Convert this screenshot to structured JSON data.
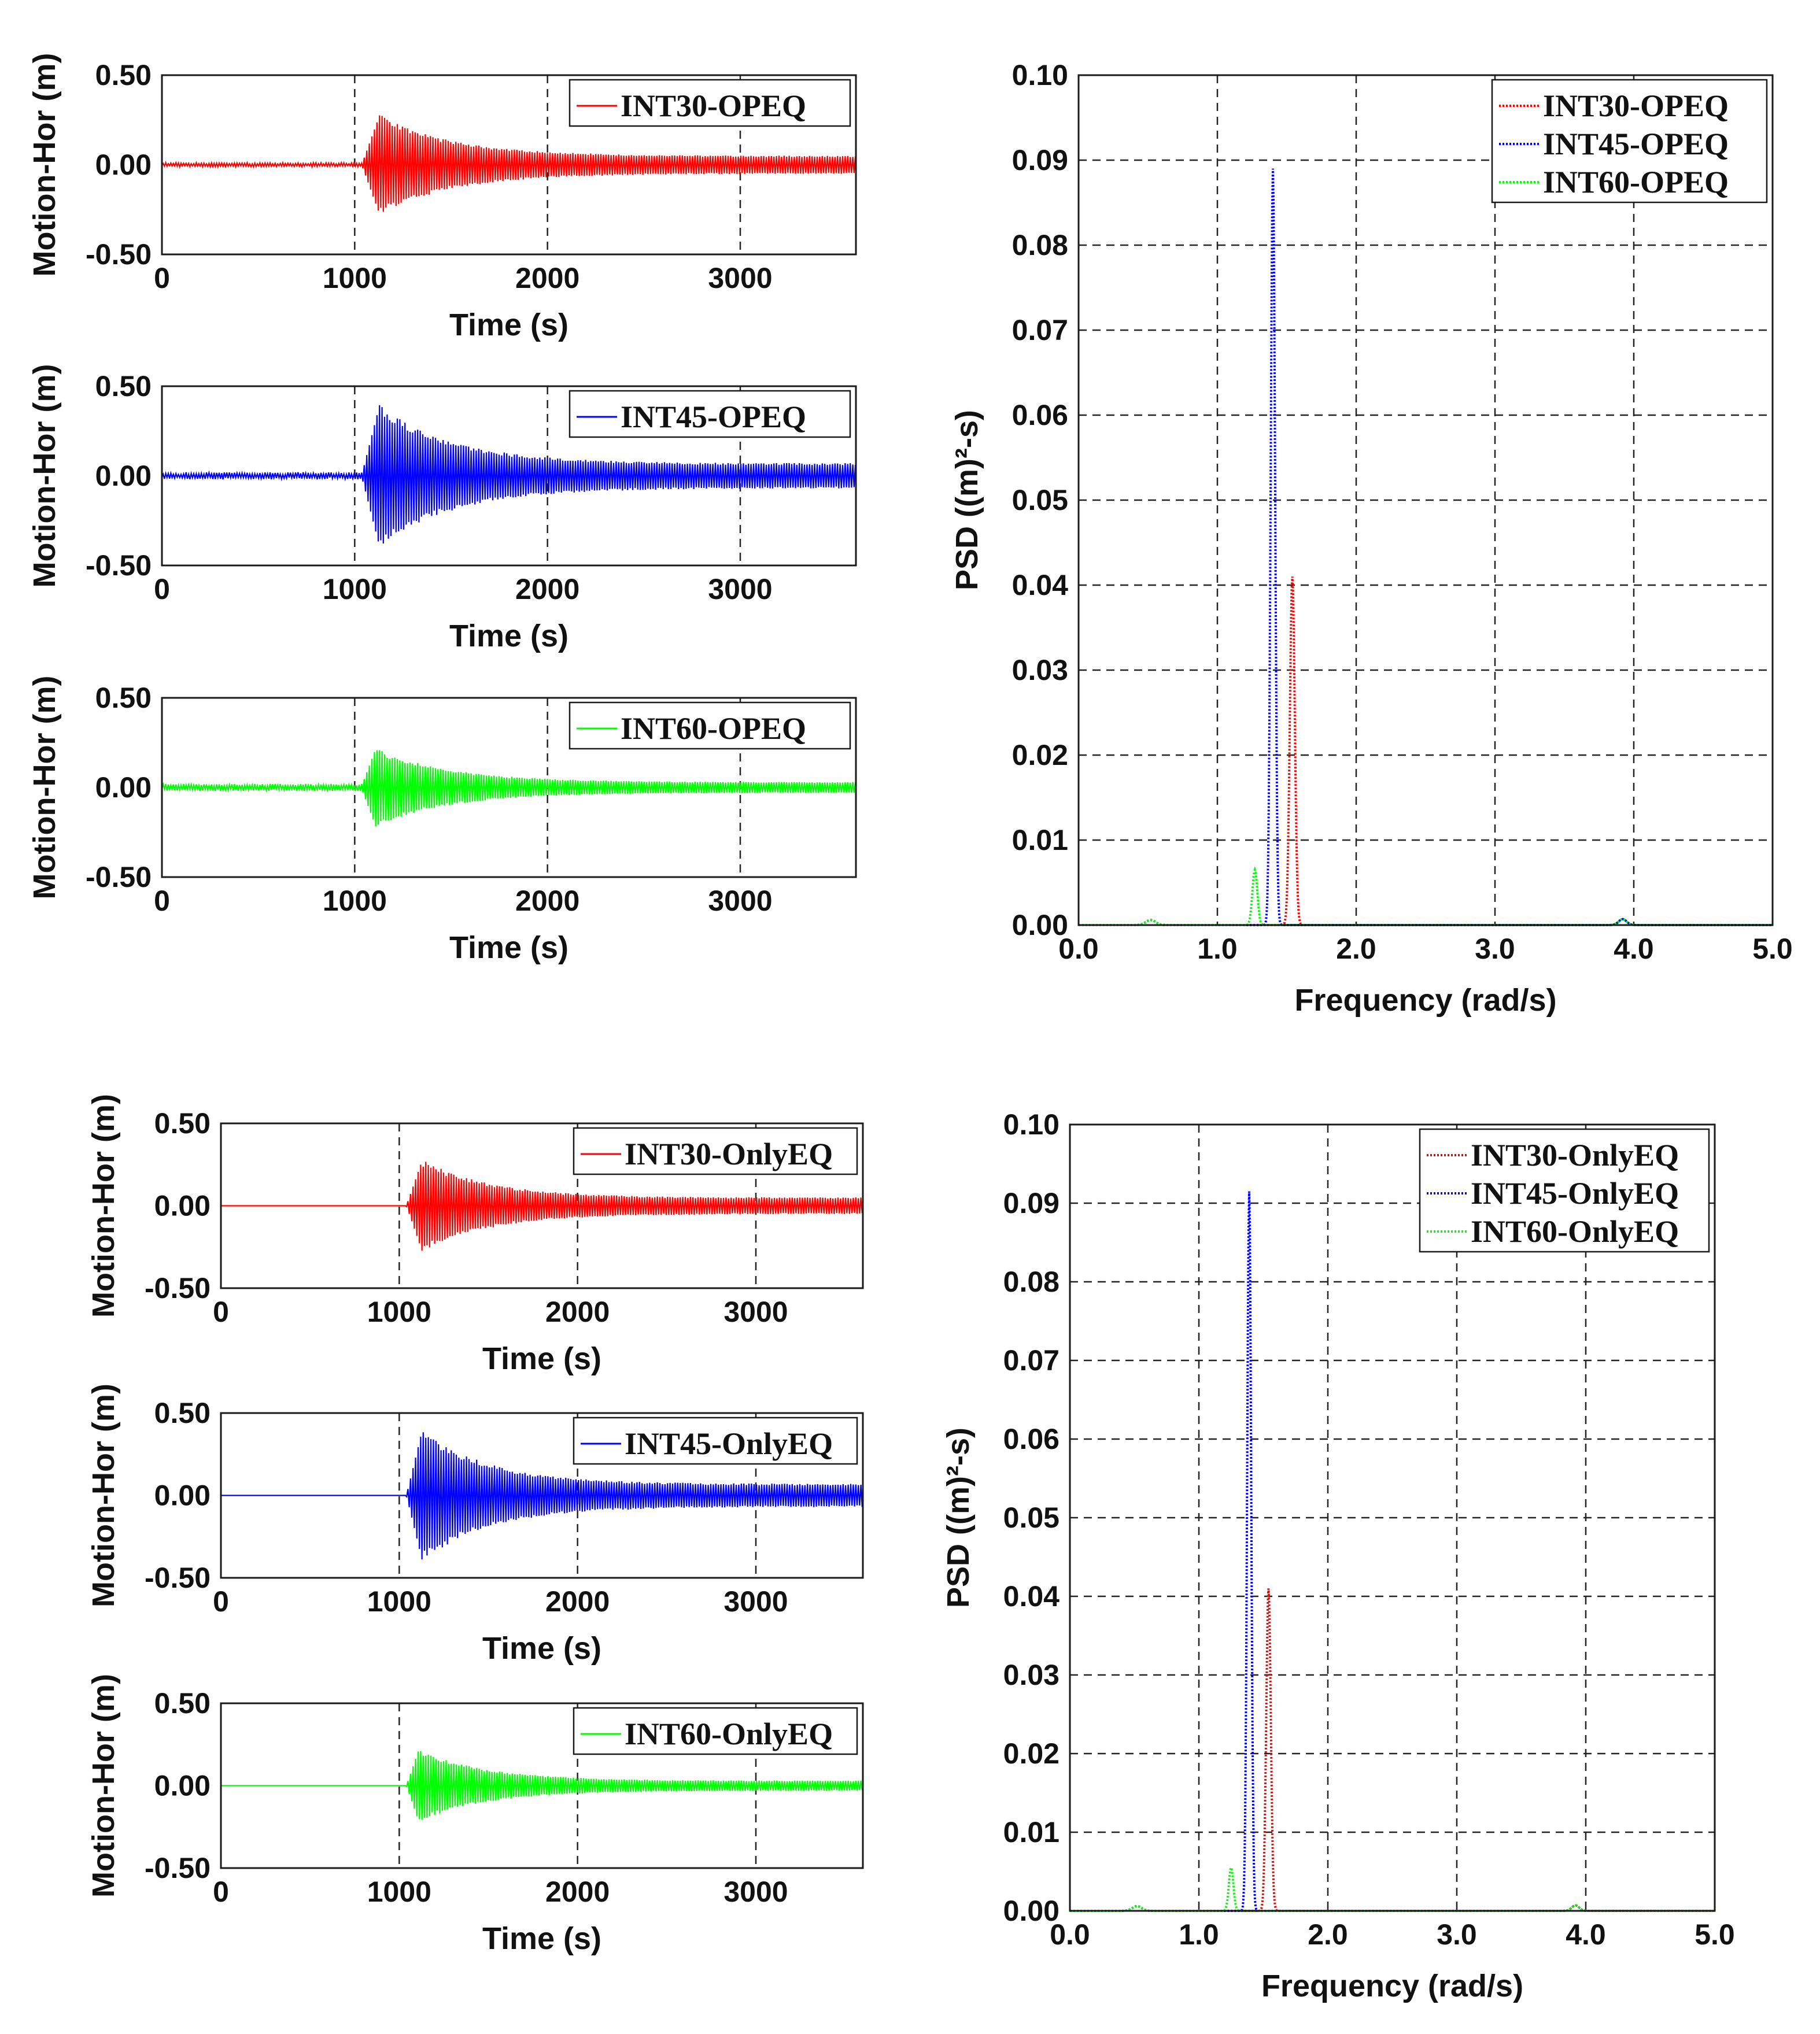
{
  "chart_data": [
    {
      "type": "line",
      "title": "",
      "xlabel": "Time (s)",
      "ylabel": "Motion-Hor (m)",
      "xlim": [
        0,
        3600
      ],
      "ylim": [
        -0.5,
        0.5
      ],
      "xticks": [
        "0",
        "1000",
        "2000",
        "3000"
      ],
      "yticks": [
        "0.50",
        "0.00",
        "-0.50"
      ],
      "series": [
        {
          "name": "INT30-OPEQ",
          "color": "#ff0000",
          "pre_amp": 0.012,
          "onset": 1040,
          "peak_time": 1130,
          "peak": 0.28,
          "final": 0.05
        }
      ]
    },
    {
      "type": "line",
      "title": "",
      "xlabel": "Time (s)",
      "ylabel": "Motion-Hor (m)",
      "xlim": [
        0,
        3600
      ],
      "ylim": [
        -0.5,
        0.5
      ],
      "xticks": [
        "0",
        "1000",
        "2000",
        "3000"
      ],
      "yticks": [
        "0.50",
        "0.00",
        "-0.50"
      ],
      "series": [
        {
          "name": "INT45-OPEQ",
          "color": "#0000ff",
          "pre_amp": 0.02,
          "onset": 1040,
          "peak_time": 1130,
          "peak": 0.4,
          "final": 0.07
        }
      ]
    },
    {
      "type": "line",
      "title": "",
      "xlabel": "Time (s)",
      "ylabel": "Motion-Hor (m)",
      "xlim": [
        0,
        3600
      ],
      "ylim": [
        -0.5,
        0.5
      ],
      "xticks": [
        "0",
        "1000",
        "2000",
        "3000"
      ],
      "yticks": [
        "0.50",
        "0.00",
        "-0.50"
      ],
      "series": [
        {
          "name": "INT60-OPEQ",
          "color": "#00ff00",
          "pre_amp": 0.02,
          "onset": 1040,
          "peak_time": 1110,
          "peak": 0.22,
          "final": 0.03
        }
      ]
    },
    {
      "type": "line",
      "title": "",
      "xlabel": "Frequency (rad/s)",
      "ylabel": "PSD ((m)²-s)",
      "xlim": [
        0,
        5
      ],
      "ylim": [
        0,
        0.1
      ],
      "xticks": [
        "0.0",
        "1.0",
        "2.0",
        "3.0",
        "4.0",
        "5.0"
      ],
      "yticks": [
        "0.10",
        "0.09",
        "0.08",
        "0.07",
        "0.06",
        "0.05",
        "0.04",
        "0.03",
        "0.02",
        "0.01",
        "0.00"
      ],
      "series": [
        {
          "name": "INT30-OPEQ",
          "color": "#ff0000",
          "peak_x": 1.54,
          "peak_y": 0.041,
          "width": 0.025
        },
        {
          "name": "INT45-OPEQ",
          "color": "#0000ff",
          "peak_x": 1.4,
          "peak_y": 0.089,
          "width": 0.022
        },
        {
          "name": "INT60-OPEQ",
          "color": "#00ff00",
          "peak_x": 1.27,
          "peak_y": 0.0065,
          "width": 0.025
        }
      ]
    },
    {
      "type": "line",
      "title": "",
      "xlabel": "Time (s)",
      "ylabel": "Motion-Hor (m)",
      "xlim": [
        0,
        3600
      ],
      "ylim": [
        -0.5,
        0.5
      ],
      "xticks": [
        "0",
        "1000",
        "2000",
        "3000"
      ],
      "yticks": [
        "0.50",
        "0.00",
        "-0.50"
      ],
      "series": [
        {
          "name": "INT30-OnlyEQ",
          "color": "#ff0000",
          "pre_amp": 0,
          "onset": 1040,
          "peak_time": 1130,
          "peak": 0.28,
          "final": 0.05
        }
      ]
    },
    {
      "type": "line",
      "title": "",
      "xlabel": "Time (s)",
      "ylabel": "Motion-Hor (m)",
      "xlim": [
        0,
        3600
      ],
      "ylim": [
        -0.5,
        0.5
      ],
      "xticks": [
        "0",
        "1000",
        "2000",
        "3000"
      ],
      "yticks": [
        "0.50",
        "0.00",
        "-0.50"
      ],
      "series": [
        {
          "name": "INT45-OnlyEQ",
          "color": "#0000ff",
          "pre_amp": 0,
          "onset": 1040,
          "peak_time": 1130,
          "peak": 0.4,
          "final": 0.07
        }
      ]
    },
    {
      "type": "line",
      "title": "",
      "xlabel": "Time (s)",
      "ylabel": "Motion-Hor (m)",
      "xlim": [
        0,
        3600
      ],
      "ylim": [
        -0.5,
        0.5
      ],
      "xticks": [
        "0",
        "1000",
        "2000",
        "3000"
      ],
      "yticks": [
        "0.50",
        "0.00",
        "-0.50"
      ],
      "series": [
        {
          "name": "INT60-OnlyEQ",
          "color": "#00ff00",
          "pre_amp": 0,
          "onset": 1040,
          "peak_time": 1110,
          "peak": 0.22,
          "final": 0.03
        }
      ]
    },
    {
      "type": "line",
      "title": "",
      "xlabel": "Frequency (rad/s)",
      "ylabel": "PSD ((m)²-s)",
      "xlim": [
        0,
        5
      ],
      "ylim": [
        0,
        0.1
      ],
      "xticks": [
        "0.0",
        "1.0",
        "2.0",
        "3.0",
        "4.0",
        "5.0"
      ],
      "yticks": [
        "0.10",
        "0.09",
        "0.08",
        "0.07",
        "0.06",
        "0.05",
        "0.04",
        "0.03",
        "0.02",
        "0.01",
        "0.00"
      ],
      "series": [
        {
          "name": "INT30-OnlyEQ",
          "color": "#ff0000",
          "peak_x": 1.54,
          "peak_y": 0.041,
          "width": 0.025
        },
        {
          "name": "INT45-OnlyEQ",
          "color": "#0000ff",
          "peak_x": 1.39,
          "peak_y": 0.0915,
          "width": 0.022
        },
        {
          "name": "INT60-OnlyEQ",
          "color": "#00ff00",
          "peak_x": 1.25,
          "peak_y": 0.0055,
          "width": 0.025
        }
      ]
    }
  ]
}
